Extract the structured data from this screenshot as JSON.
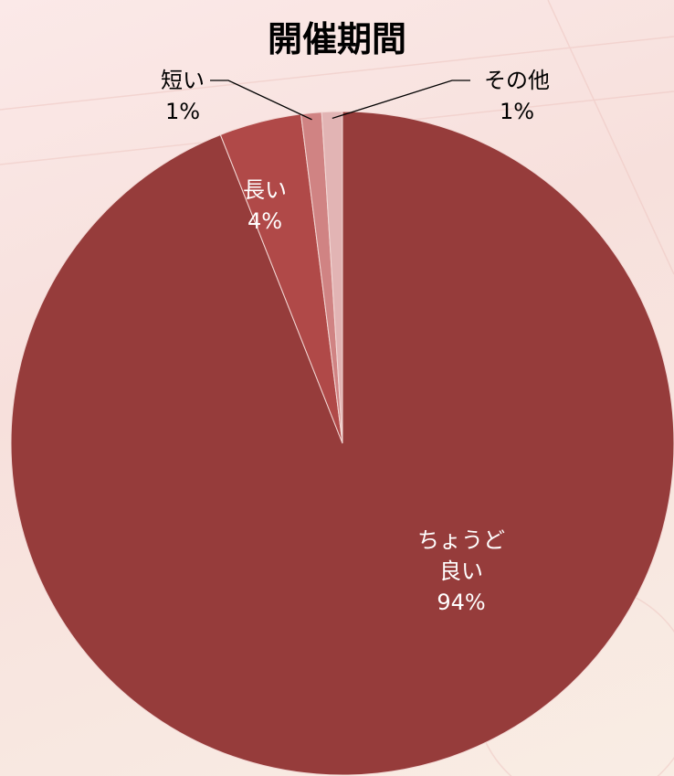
{
  "chart_data": {
    "type": "pie",
    "title": "開催期間",
    "categories": [
      "ちょうど良い",
      "長い",
      "短い",
      "その他"
    ],
    "values": [
      94,
      4,
      1,
      1
    ],
    "value_labels": [
      "94%",
      "4%",
      "1%",
      "1%"
    ],
    "colors": [
      "#963c3b",
      "#b04948",
      "#d08383",
      "#e2b4b4"
    ]
  }
}
